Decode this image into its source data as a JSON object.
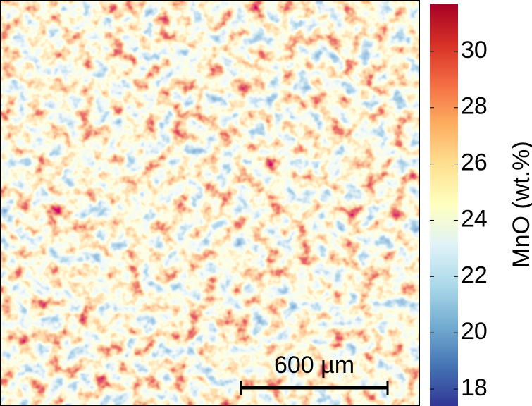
{
  "colorbar": {
    "label": "MnO (wt.%)",
    "lim": [
      17.4,
      31.7
    ],
    "ticks": [
      18,
      20,
      22,
      24,
      26,
      28,
      30
    ]
  },
  "scale_bar": {
    "label": "600 µm"
  }
}
